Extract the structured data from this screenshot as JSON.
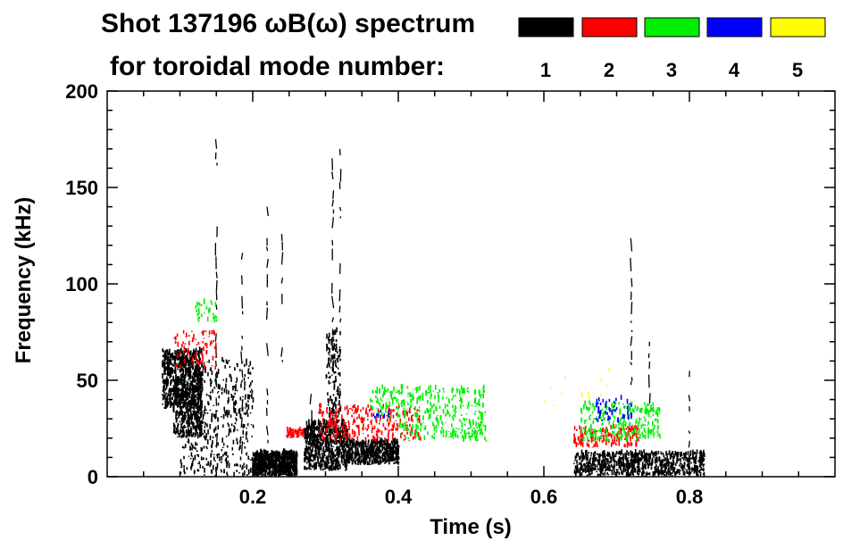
{
  "chart_data": {
    "type": "scatter",
    "title_line1": "Shot 137196 ωB(ω) spectrum",
    "title_line2": "for toroidal mode number:",
    "xlabel": "Time (s)",
    "ylabel": "Frequency (kHz)",
    "xlim": [
      0.0,
      1.0
    ],
    "ylim": [
      0,
      200
    ],
    "x_ticks": [
      0.2,
      0.4,
      0.6,
      0.8
    ],
    "x_tick_labels": [
      "0.2",
      "0.4",
      "0.6",
      "0.8"
    ],
    "y_ticks": [
      0,
      50,
      100,
      150,
      200
    ],
    "y_tick_labels": [
      "0",
      "50",
      "100",
      "150",
      "200"
    ],
    "legend": [
      {
        "label": "1",
        "color": "#000000"
      },
      {
        "label": "2",
        "color": "#ff0000"
      },
      {
        "label": "3",
        "color": "#00ee00"
      },
      {
        "label": "4",
        "color": "#0000ff"
      },
      {
        "label": "5",
        "color": "#ffff00"
      }
    ],
    "series": [
      {
        "name": "1",
        "color": "#000000",
        "clusters": [
          {
            "t": [
              0.075,
              0.13
            ],
            "f": [
              35,
              65
            ],
            "density": 700
          },
          {
            "t": [
              0.09,
              0.13
            ],
            "f": [
              20,
              45
            ],
            "density": 300
          },
          {
            "t": [
              0.1,
              0.2
            ],
            "f": [
              0,
              60
            ],
            "density": 500
          },
          {
            "t": [
              0.2,
              0.26
            ],
            "f": [
              0,
              12
            ],
            "density": 700
          },
          {
            "t": [
              0.27,
              0.33
            ],
            "f": [
              3,
              28
            ],
            "density": 700
          },
          {
            "t": [
              0.33,
              0.4
            ],
            "f": [
              6,
              18
            ],
            "density": 500
          },
          {
            "t": [
              0.3,
              0.32
            ],
            "f": [
              30,
              75
            ],
            "density": 150
          },
          {
            "t": [
              0.64,
              0.82
            ],
            "f": [
              0,
              12
            ],
            "density": 800
          }
        ],
        "lines": [
          {
            "t": 0.15,
            "f": [
              15,
              186
            ]
          },
          {
            "t": 0.185,
            "f": [
              5,
              120
            ]
          },
          {
            "t": 0.22,
            "f": [
              10,
              140
            ]
          },
          {
            "t": 0.24,
            "f": [
              55,
              130
            ]
          },
          {
            "t": 0.31,
            "f": [
              60,
              170
            ]
          },
          {
            "t": 0.32,
            "f": [
              80,
              170
            ]
          },
          {
            "t": 0.28,
            "f": [
              20,
              50
            ]
          },
          {
            "t": 0.72,
            "f": [
              40,
              125
            ]
          },
          {
            "t": 0.745,
            "f": [
              30,
              70
            ]
          },
          {
            "t": 0.8,
            "f": [
              10,
              55
            ]
          }
        ]
      },
      {
        "name": "2",
        "color": "#ff0000",
        "clusters": [
          {
            "t": [
              0.09,
              0.15
            ],
            "f": [
              55,
              75
            ],
            "density": 80
          },
          {
            "t": [
              0.29,
              0.43
            ],
            "f": [
              18,
              36
            ],
            "density": 300
          },
          {
            "t": [
              0.245,
              0.27
            ],
            "f": [
              20,
              24
            ],
            "density": 60
          },
          {
            "t": [
              0.64,
              0.73
            ],
            "f": [
              15,
              25
            ],
            "density": 160
          }
        ],
        "lines": []
      },
      {
        "name": "3",
        "color": "#00ee00",
        "clusters": [
          {
            "t": [
              0.36,
              0.52
            ],
            "f": [
              30,
              46
            ],
            "density": 260
          },
          {
            "t": [
              0.4,
              0.52
            ],
            "f": [
              18,
              30
            ],
            "density": 150
          },
          {
            "t": [
              0.65,
              0.76
            ],
            "f": [
              18,
              38
            ],
            "density": 260
          },
          {
            "t": [
              0.12,
              0.15
            ],
            "f": [
              80,
              92
            ],
            "density": 30
          }
        ],
        "lines": []
      },
      {
        "name": "4",
        "color": "#0000ff",
        "clusters": [
          {
            "t": [
              0.67,
              0.72
            ],
            "f": [
              28,
              40
            ],
            "density": 50
          },
          {
            "t": [
              0.36,
              0.4
            ],
            "f": [
              30,
              34
            ],
            "density": 10
          }
        ],
        "lines": []
      },
      {
        "name": "5",
        "color": "#ffff00",
        "clusters": [
          {
            "t": [
              0.6,
              0.7
            ],
            "f": [
              35,
              55
            ],
            "density": 12
          }
        ],
        "lines": []
      }
    ]
  }
}
